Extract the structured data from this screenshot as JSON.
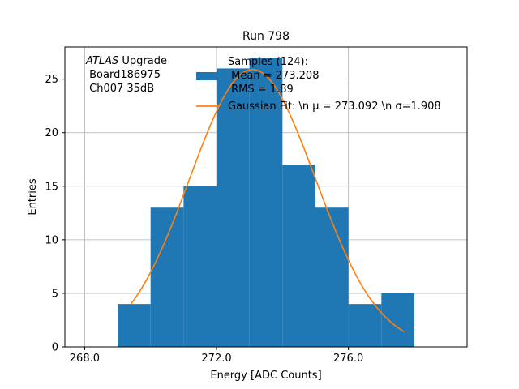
{
  "chart_data": {
    "type": "bar",
    "title": "Run 798",
    "xlabel": "Energy [ADC Counts]",
    "ylabel": "Entries",
    "xlim": [
      267.4,
      279.6
    ],
    "ylim": [
      0,
      28.0
    ],
    "x_ticks": [
      268.0,
      272.0,
      276.0
    ],
    "x_tick_labels": [
      "268.0",
      "272.0",
      "276.0"
    ],
    "y_ticks": [
      0,
      5,
      10,
      15,
      20,
      25
    ],
    "y_tick_labels": [
      "0",
      "5",
      "10",
      "15",
      "20",
      "25"
    ],
    "grid": true,
    "bins": [
      {
        "x0": 269,
        "x1": 270,
        "count": 4
      },
      {
        "x0": 270,
        "x1": 271,
        "count": 13
      },
      {
        "x0": 271,
        "x1": 272,
        "count": 15
      },
      {
        "x0": 272,
        "x1": 273,
        "count": 26
      },
      {
        "x0": 273,
        "x1": 274,
        "count": 27
      },
      {
        "x0": 274,
        "x1": 275,
        "count": 17
      },
      {
        "x0": 275,
        "x1": 276,
        "count": 13
      },
      {
        "x0": 276,
        "x1": 277,
        "count": 4
      },
      {
        "x0": 277,
        "x1": 278,
        "count": 5
      }
    ],
    "fit": {
      "mu": 273.092,
      "sigma": 1.908,
      "amplitude": 25.9,
      "x_range": [
        269.4,
        277.7
      ]
    },
    "colors": {
      "histogram": "#1f77b4",
      "fit": "#ff7f0e",
      "grid": "#b0b0b0"
    },
    "annotation": {
      "line1_italic": "ATLAS",
      "line1_rest": " Upgrade",
      "line2": " Board186975",
      "line3": " Ch007 35dB"
    },
    "legend": {
      "placement": "upper center",
      "histogram_lines": [
        "Samples (124):",
        " Mean = 273.208",
        " RMS = 1.89"
      ],
      "fit_label": "Gaussian Fit: \\n μ = 273.092 \\n σ=1.908"
    }
  }
}
